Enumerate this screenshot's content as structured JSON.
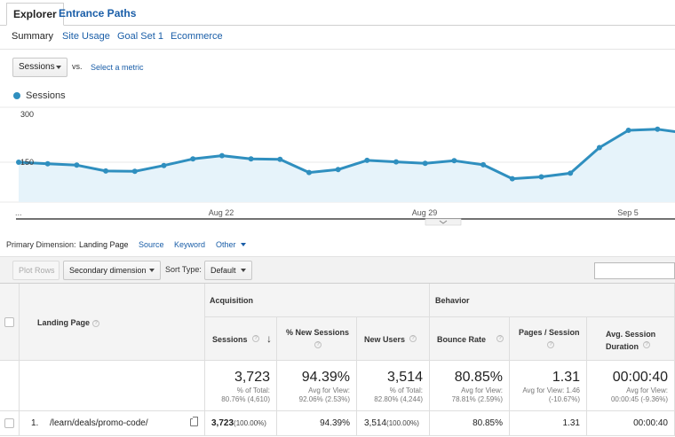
{
  "tabs": {
    "explorer": "Explorer",
    "entrance_paths": "Entrance Paths"
  },
  "subtabs": [
    "Summary",
    "Site Usage",
    "Goal Set 1",
    "Ecommerce"
  ],
  "metric": {
    "selected": "Sessions",
    "vs": "vs.",
    "select_metric": "Select a metric"
  },
  "legend": {
    "label": "Sessions",
    "color": "#2f8fbf"
  },
  "chart_data": {
    "type": "area",
    "series": [
      {
        "name": "Sessions",
        "values": [
          150,
          146,
          142,
          126,
          125,
          141,
          159,
          168,
          159,
          158,
          122,
          130,
          155,
          151,
          147,
          154,
          143,
          105,
          110,
          120,
          190,
          237,
          240,
          229
        ]
      }
    ],
    "y_ticks": [
      "300",
      "150"
    ],
    "x_ticks": [
      "...",
      "Aug 22",
      "Aug 29",
      "Sep 5"
    ],
    "ylim": [
      0,
      300
    ],
    "color": "#2f8fbf",
    "fill": "#e6f3fa"
  },
  "primary_dimension": {
    "label": "Primary Dimension:",
    "options": [
      "Landing Page",
      "Source",
      "Keyword",
      "Other"
    ]
  },
  "controls": {
    "plot_rows": "Plot Rows",
    "secondary_dimension": "Secondary dimension",
    "sort_type_label": "Sort Type:",
    "sort_type_value": "Default"
  },
  "table": {
    "landing_page_header": "Landing Page",
    "group_acquisition": "Acquisition",
    "group_behavior": "Behavior",
    "columns": [
      "Sessions",
      "% New Sessions",
      "New Users",
      "Bounce Rate",
      "Pages / Session",
      "Avg. Session Duration"
    ],
    "totals": {
      "sessions": {
        "value": "3,723",
        "sub1": "% of Total:",
        "sub2": "80.76% (4,610)"
      },
      "pct_new": {
        "value": "94.39%",
        "sub1": "Avg for View:",
        "sub2": "92.06% (2.53%)"
      },
      "new_users": {
        "value": "3,514",
        "sub1": "% of Total:",
        "sub2": "82.80% (4,244)"
      },
      "bounce": {
        "value": "80.85%",
        "sub1": "Avg for View:",
        "sub2": "78.81% (2.59%)"
      },
      "pages": {
        "value": "1.31",
        "sub1": "Avg for View: 1.46",
        "sub2": "(-10.67%)"
      },
      "duration": {
        "value": "00:00:40",
        "sub1": "Avg for View:",
        "sub2": "00:00:45 (-9.36%)"
      }
    },
    "row1": {
      "index": "1.",
      "page": "/learn/deals/promo-code/",
      "sessions": "3,723",
      "sessions_pct": "(100.00%)",
      "pct_new": "94.39%",
      "new_users": "3,514",
      "new_users_pct": "(100.00%)",
      "bounce": "80.85%",
      "pages": "1.31",
      "duration": "00:00:40"
    }
  }
}
